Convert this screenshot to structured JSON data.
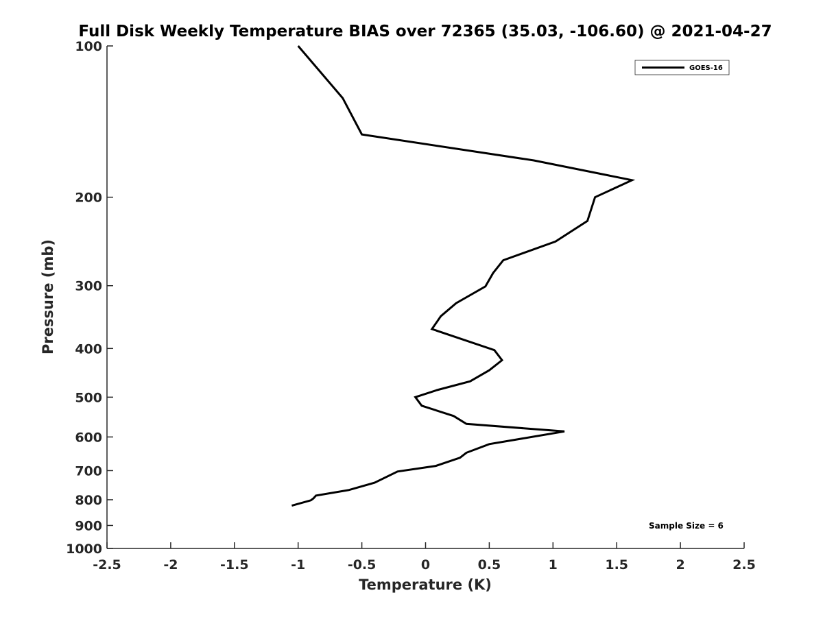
{
  "chart_data": {
    "type": "line",
    "title": "Full Disk Weekly Temperature BIAS over 72365 (35.03, -106.60) @ 2021-04-27",
    "xlabel": "Temperature (K)",
    "ylabel": "Pressure (mb)",
    "xlim": [
      -2.5,
      2.5
    ],
    "ylim": [
      1000,
      100
    ],
    "y_scale": "log",
    "y_reversed": true,
    "x_ticks": [
      -2.5,
      -2,
      -1.5,
      -1,
      -0.5,
      0,
      0.5,
      1,
      1.5,
      2,
      2.5
    ],
    "x_tick_labels": [
      "-2.5",
      "-2",
      "-1.5",
      "-1",
      "-0.5",
      "0",
      "0.5",
      "1",
      "1.5",
      "2",
      "2.5"
    ],
    "y_ticks": [
      100,
      200,
      300,
      400,
      500,
      600,
      700,
      800,
      900,
      1000
    ],
    "y_tick_labels": [
      "100",
      "200",
      "300",
      "400",
      "500",
      "600",
      "700",
      "800",
      "900",
      "1000"
    ],
    "grid": false,
    "legend_position": "top-right",
    "note": "Sample Size = 6",
    "series": [
      {
        "name": "GOES-16",
        "color": "#000000",
        "points": [
          {
            "x": -1.0,
            "y": 100
          },
          {
            "x": -0.65,
            "y": 127
          },
          {
            "x": -0.5,
            "y": 150
          },
          {
            "x": 0.85,
            "y": 169
          },
          {
            "x": 1.62,
            "y": 185
          },
          {
            "x": 1.33,
            "y": 200
          },
          {
            "x": 1.27,
            "y": 223
          },
          {
            "x": 1.02,
            "y": 245
          },
          {
            "x": 0.61,
            "y": 267
          },
          {
            "x": 0.53,
            "y": 283
          },
          {
            "x": 0.47,
            "y": 301
          },
          {
            "x": 0.24,
            "y": 325
          },
          {
            "x": 0.12,
            "y": 345
          },
          {
            "x": 0.05,
            "y": 366
          },
          {
            "x": 0.54,
            "y": 403
          },
          {
            "x": 0.6,
            "y": 422
          },
          {
            "x": 0.5,
            "y": 442
          },
          {
            "x": 0.35,
            "y": 465
          },
          {
            "x": 0.09,
            "y": 484
          },
          {
            "x": -0.08,
            "y": 500
          },
          {
            "x": -0.03,
            "y": 520
          },
          {
            "x": 0.22,
            "y": 545
          },
          {
            "x": 0.32,
            "y": 565
          },
          {
            "x": 1.09,
            "y": 585
          },
          {
            "x": 0.5,
            "y": 620
          },
          {
            "x": 0.32,
            "y": 645
          },
          {
            "x": 0.27,
            "y": 660
          },
          {
            "x": 0.08,
            "y": 685
          },
          {
            "x": -0.22,
            "y": 703
          },
          {
            "x": -0.4,
            "y": 740
          },
          {
            "x": -0.6,
            "y": 765
          },
          {
            "x": -0.86,
            "y": 785
          },
          {
            "x": -0.88,
            "y": 795
          },
          {
            "x": -0.9,
            "y": 802
          },
          {
            "x": -1.05,
            "y": 822
          }
        ]
      }
    ]
  }
}
